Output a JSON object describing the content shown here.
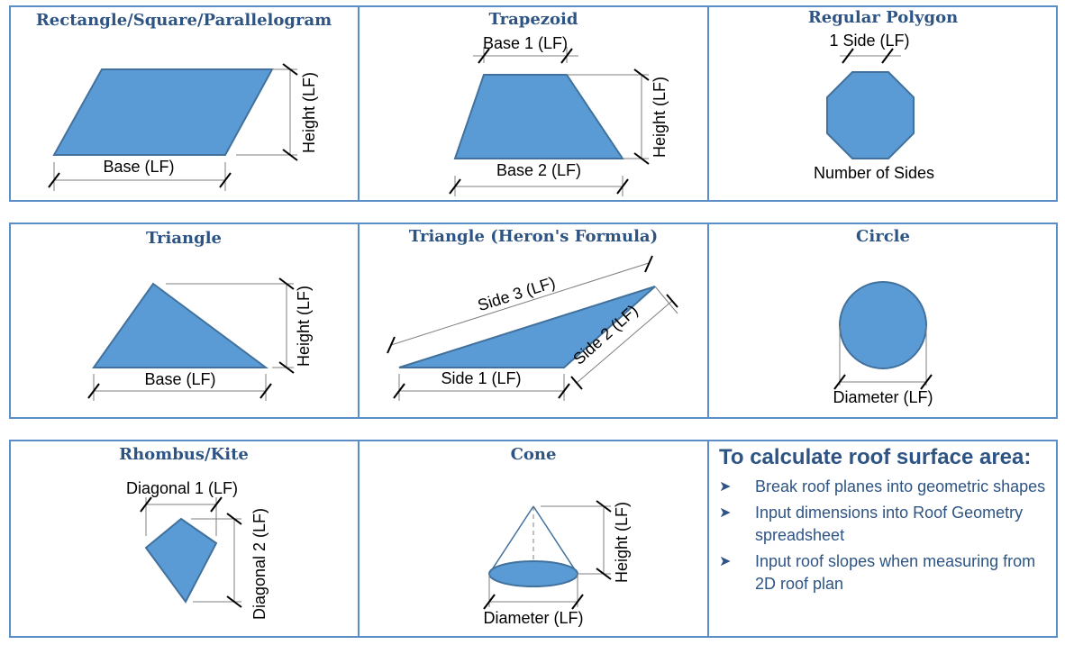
{
  "cells": {
    "rectangle": {
      "title": "Rectangle/Square/Parallelogram",
      "base": "Base (LF)",
      "height": "Height (LF)"
    },
    "trapezoid": {
      "title": "Trapezoid",
      "base1": "Base 1 (LF)",
      "base2": "Base 2 (LF)",
      "height": "Height (LF)"
    },
    "regular_polygon": {
      "title": "Regular Polygon",
      "side": "1 Side (LF)",
      "sides": "Number of Sides"
    },
    "triangle": {
      "title": "Triangle",
      "base": "Base (LF)",
      "height": "Height (LF)"
    },
    "heron": {
      "title": "Triangle (Heron's Formula)",
      "side1": "Side 1 (LF)",
      "side2": "Side 2 (LF)",
      "side3": "Side 3 (LF)"
    },
    "circle": {
      "title": "Circle",
      "diameter": "Diameter (LF)"
    },
    "rhombus": {
      "title": "Rhombus/Kite",
      "diagonal1": "Diagonal 1 (LF)",
      "diagonal2": "Diagonal 2 (LF)"
    },
    "cone": {
      "title": "Cone",
      "height": "Height (LF)",
      "diameter": "Diameter (LF)"
    }
  },
  "notes": {
    "title": "To calculate roof surface area:",
    "items": [
      "Break roof planes into geometric shapes",
      "Input dimensions into Roof Geometry spreadsheet",
      "Input roof slopes when measuring from 2D roof plan"
    ]
  },
  "colors": {
    "shape_fill": "#5b9bd5",
    "border": "#5b8ec6",
    "title_text": "#2e5484"
  }
}
